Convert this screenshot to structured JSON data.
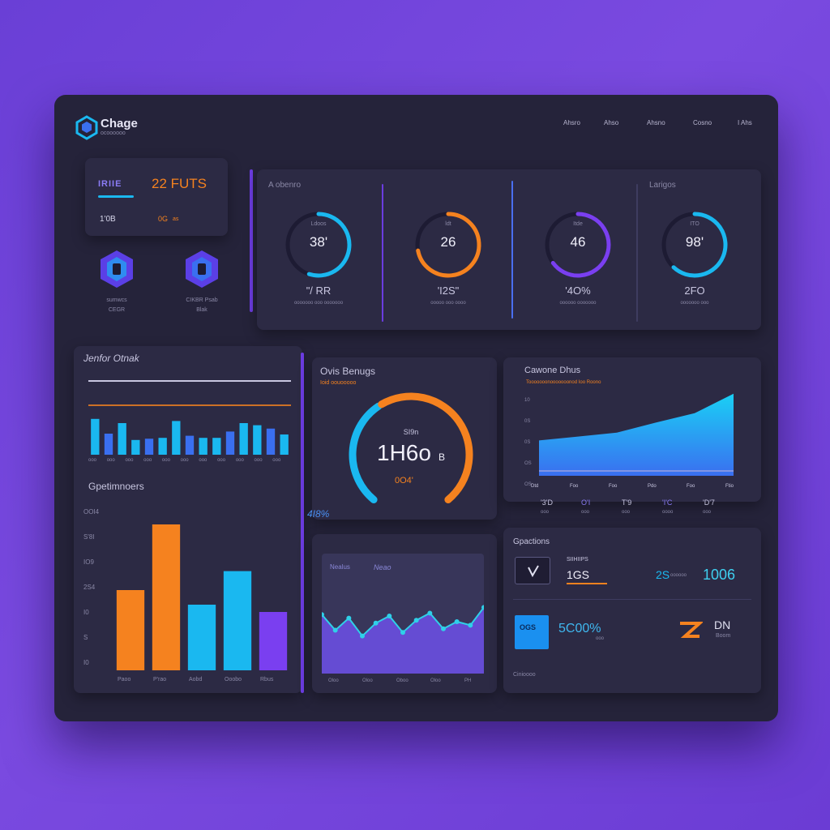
{
  "colors": {
    "background": "#7040dc",
    "panel": "#25233a",
    "card": "#2c2a44",
    "orange": "#f5821f",
    "cyan": "#1ab8f0",
    "purple": "#7a3ff0",
    "blue": "#3a6ff0"
  },
  "header": {
    "logo_text": "Chage",
    "logo_sub": "ocoooooo",
    "nav": [
      "Ahsro",
      "Ahso",
      "Ahsno",
      "Cosno",
      "I Ahs"
    ]
  },
  "summary": {
    "code": "IRIIE",
    "value": "22 FUTS",
    "left_stat": "1'0B",
    "right_stat": "0G",
    "right_stat_sub": "as"
  },
  "icons": [
    {
      "name": "hex-icon",
      "label": "sumwcs",
      "sub": "CEGR"
    },
    {
      "name": "hex-icon",
      "label": "CIKBR Psab",
      "sub": "Blak"
    }
  ],
  "gauges_panel": {
    "left_title": "A obenro",
    "right_title": "Larigos",
    "gauges": [
      {
        "top": "Ldoos",
        "value": "38'",
        "bottom": "\"/ RR",
        "sub": "ooooooo ooo ooooooo",
        "color": "#1ab8f0",
        "pct": 0.55
      },
      {
        "top": "ldt",
        "value": "26",
        "bottom": "'I2S\"",
        "sub": "ooooo ooo oooo",
        "color": "#f5821f",
        "pct": 0.72
      },
      {
        "top": "Itde",
        "value": "46",
        "bottom": "'4O%",
        "sub": "oooooo ooooooo",
        "color": "#7a3ff0",
        "pct": 0.65
      },
      {
        "top": "ITO",
        "value": "98'",
        "bottom": "2FO",
        "sub": "ooooooo ooo",
        "color": "#1ab8f0",
        "pct": 0.62
      }
    ]
  },
  "left_chart": {
    "title": "Jenfor Otnak",
    "bars": [
      0.85,
      0.5,
      0.75,
      0.35,
      0.38,
      0.4,
      0.8,
      0.45,
      0.4,
      0.4,
      0.55,
      0.75,
      0.7,
      0.62,
      0.48
    ],
    "x_ticks": [
      "ooo",
      "ooo",
      "ooo",
      "ooo",
      "ooo",
      "ooo",
      "ooo",
      "ooo",
      "ooo",
      "ooo",
      "ooo"
    ]
  },
  "bottom_chart": {
    "title": "Gpetimnoers",
    "y_ticks": [
      "OOI4",
      "S'8I",
      "IO9",
      "2S4",
      "I0",
      "S",
      "I0"
    ],
    "categories": [
      "Paoo",
      "P'rao",
      "Aobd",
      "Ooobo",
      "Rbus"
    ],
    "values": [
      55,
      100,
      45,
      68,
      40
    ],
    "colors": [
      "#f5821f",
      "#f5821f",
      "#1ab8f0",
      "#1ab8f0",
      "#7a3ff0"
    ]
  },
  "center_gauge": {
    "title": "Ovis Benugs",
    "subtitle": "Ioid oouooooo",
    "small_top": "SI9n",
    "value": "1H6o",
    "unit": "B",
    "sub": "0O4'",
    "pct_label": "4I8%",
    "pct": 0.78
  },
  "mini_chart": {
    "legend_a": "Nealus",
    "legend_b": "Neao",
    "values": [
      60,
      38,
      55,
      30,
      48,
      58,
      35,
      52,
      62,
      40,
      50,
      45,
      70
    ],
    "x_ticks": [
      "Oloo",
      "Oloo",
      "Oboo",
      "Oloo",
      "PH"
    ]
  },
  "area_chart": {
    "title": "Cawone Dhus",
    "subtitle": "Tooooooonooooooonod Ioo Roono",
    "y_ticks": [
      "10",
      "0S",
      "0S",
      "OS",
      "OS"
    ],
    "x_ticks": [
      "Dtd",
      "Foo",
      "Foo",
      "Pdo",
      "Foo",
      "Ftio"
    ],
    "values": [
      35,
      40,
      45,
      58,
      70,
      95
    ],
    "stats": [
      {
        "top": "'3'D",
        "bot": "ooo"
      },
      {
        "top": "O'I",
        "bot": "ooo"
      },
      {
        "top": "T'9",
        "bot": "ooo"
      },
      {
        "top": "'I'C",
        "bot": "oooo"
      },
      {
        "top": "'D'7",
        "bot": "ooo"
      }
    ]
  },
  "kpis": {
    "title": "Gpactions",
    "row1": {
      "label": "SIIHIIPS",
      "value": "1GS",
      "mid": "2S",
      "mid_sub": "oooooo",
      "right": "1006"
    },
    "row2": {
      "value": "5C00%",
      "value_sub": "ooo",
      "icon_label": "OGS",
      "right": "DN",
      "right_sub": "Boom"
    },
    "footer": "Cinioooo"
  }
}
